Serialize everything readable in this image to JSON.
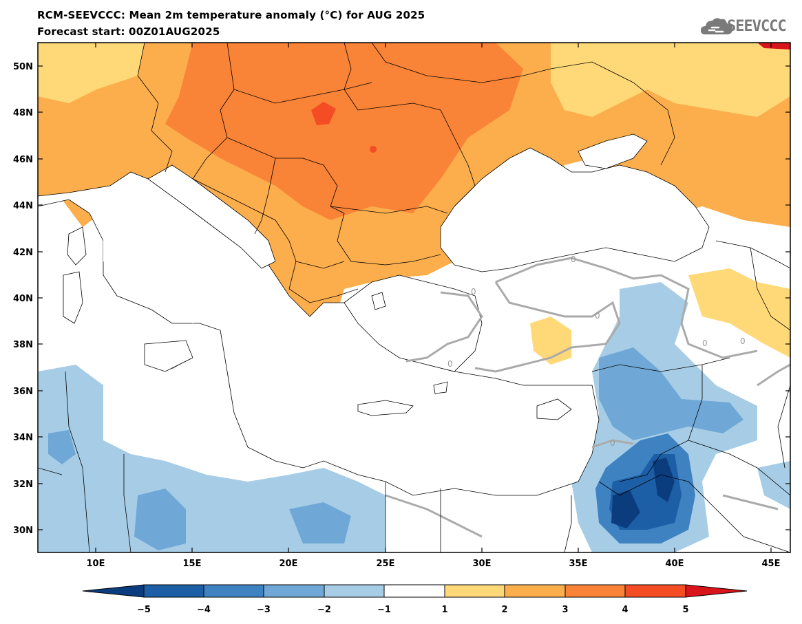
{
  "header": {
    "title": "RCM-SEEVCCC: Mean 2m temperature anomaly (°C) for AUG 2025",
    "subtitle": "Forecast start: 00Z01AUG2025"
  },
  "logo": {
    "text": "SEEVCCC",
    "icon": "cloud-icon"
  },
  "map": {
    "lat_range": [
      29,
      51
    ],
    "lon_range": [
      7,
      46
    ],
    "lat_ticks": [
      "50N",
      "48N",
      "46N",
      "44N",
      "42N",
      "40N",
      "38N",
      "36N",
      "34N",
      "32N",
      "30N"
    ],
    "lon_ticks": [
      "10E",
      "15E",
      "20E",
      "25E",
      "30E",
      "35E",
      "40E",
      "45E"
    ],
    "contour_labels": [
      "0",
      "0",
      "0",
      "0",
      "0",
      "0",
      "0",
      "0"
    ]
  },
  "colorbar": {
    "labels": [
      "−5",
      "−4",
      "−3",
      "−2",
      "−1",
      "1",
      "2",
      "3",
      "4",
      "5"
    ],
    "colors": [
      "#0b3d7e",
      "#1d5fa6",
      "#3f82c2",
      "#6fa8d6",
      "#a7cde6",
      "#ffffff",
      "#ffd978",
      "#fcae4d",
      "#f98336",
      "#f44c23",
      "#d7151b"
    ]
  },
  "colors": {
    "sea": "#ffffff",
    "boundary": "#000000",
    "zero_contour": "#aaaaaa"
  }
}
